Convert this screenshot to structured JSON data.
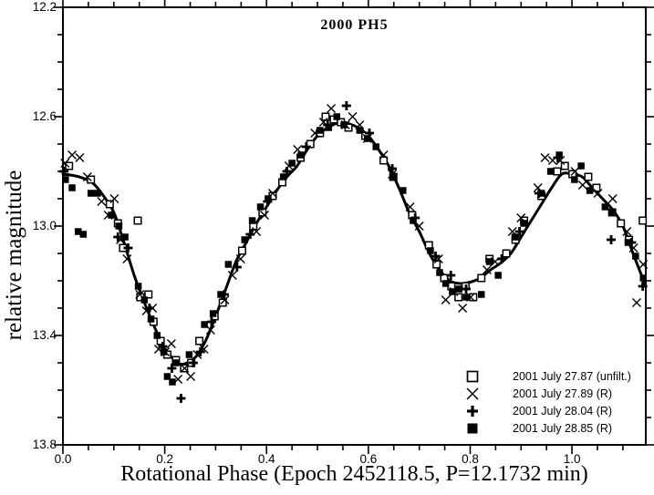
{
  "chart_data": {
    "type": "scatter",
    "title": "2000 PH5",
    "xlabel": "Rotational Phase (Epoch 2452118.5, P=12.1732 min)",
    "ylabel": "relative magnitude",
    "xlim": [
      0.0,
      1.145
    ],
    "ylim": [
      13.8,
      12.2
    ],
    "y_axis_inverted": true,
    "grid": false,
    "legend_position": "inside-lower-right",
    "x_major_ticks": [
      0.0,
      0.2,
      0.4,
      0.6,
      0.8,
      1.0
    ],
    "x_tick_labels": [
      "0.0",
      "0.2",
      "0.4",
      "0.6",
      "0.8",
      "1.0"
    ],
    "x_minor_step": 0.05,
    "y_major_ticks": [
      12.2,
      12.6,
      13.0,
      13.4,
      13.8
    ],
    "y_tick_labels": [
      "12.2",
      "12.6",
      "13.0",
      "13.4",
      "13.8"
    ],
    "y_minor_step": 0.1,
    "colors": {
      "foreground": "#000000",
      "background": "#ffffff"
    },
    "fit_curve": {
      "name": "fourier-fit-curve",
      "points": [
        [
          0.0,
          12.81
        ],
        [
          0.02,
          12.815
        ],
        [
          0.04,
          12.825
        ],
        [
          0.06,
          12.845
        ],
        [
          0.08,
          12.89
        ],
        [
          0.1,
          12.95
        ],
        [
          0.12,
          13.06
        ],
        [
          0.14,
          13.18
        ],
        [
          0.16,
          13.28
        ],
        [
          0.18,
          13.37
        ],
        [
          0.2,
          13.45
        ],
        [
          0.22,
          13.49
        ],
        [
          0.235,
          13.505
        ],
        [
          0.26,
          13.48
        ],
        [
          0.28,
          13.42
        ],
        [
          0.3,
          13.33
        ],
        [
          0.32,
          13.23
        ],
        [
          0.34,
          13.13
        ],
        [
          0.36,
          13.06
        ],
        [
          0.38,
          12.99
        ],
        [
          0.4,
          12.93
        ],
        [
          0.42,
          12.87
        ],
        [
          0.44,
          12.82
        ],
        [
          0.46,
          12.78
        ],
        [
          0.48,
          12.72
        ],
        [
          0.5,
          12.67
        ],
        [
          0.52,
          12.64
        ],
        [
          0.545,
          12.62
        ],
        [
          0.56,
          12.625
        ],
        [
          0.58,
          12.64
        ],
        [
          0.6,
          12.67
        ],
        [
          0.62,
          12.72
        ],
        [
          0.64,
          12.78
        ],
        [
          0.66,
          12.86
        ],
        [
          0.68,
          12.95
        ],
        [
          0.7,
          13.02
        ],
        [
          0.72,
          13.1
        ],
        [
          0.74,
          13.16
        ],
        [
          0.76,
          13.2
        ],
        [
          0.78,
          13.21
        ],
        [
          0.8,
          13.205
        ],
        [
          0.82,
          13.19
        ],
        [
          0.84,
          13.16
        ],
        [
          0.86,
          13.135
        ],
        [
          0.88,
          13.1
        ],
        [
          0.9,
          13.04
        ],
        [
          0.92,
          12.98
        ],
        [
          0.94,
          12.92
        ],
        [
          0.96,
          12.86
        ],
        [
          0.98,
          12.81
        ],
        [
          1.0,
          12.81
        ],
        [
          1.02,
          12.82
        ],
        [
          1.04,
          12.86
        ],
        [
          1.06,
          12.9
        ],
        [
          1.08,
          12.94
        ],
        [
          1.1,
          13.0
        ],
        [
          1.12,
          13.1
        ],
        [
          1.145,
          13.22
        ]
      ]
    },
    "series": [
      {
        "name": "2001 July 27.87 (unfilt.)",
        "marker": "open-square",
        "points": [
          [
            0.012,
            12.78
          ],
          [
            0.055,
            12.83
          ],
          [
            0.092,
            12.92
          ],
          [
            0.108,
            12.99
          ],
          [
            0.118,
            13.08
          ],
          [
            0.147,
            12.98
          ],
          [
            0.152,
            13.26
          ],
          [
            0.168,
            13.25
          ],
          [
            0.178,
            13.35
          ],
          [
            0.192,
            13.42
          ],
          [
            0.205,
            13.47
          ],
          [
            0.222,
            13.49
          ],
          [
            0.238,
            13.52
          ],
          [
            0.252,
            13.5
          ],
          [
            0.268,
            13.42
          ],
          [
            0.298,
            13.33
          ],
          [
            0.314,
            13.28
          ],
          [
            0.352,
            13.09
          ],
          [
            0.374,
            13.0
          ],
          [
            0.392,
            12.95
          ],
          [
            0.412,
            12.89
          ],
          [
            0.431,
            12.84
          ],
          [
            0.467,
            12.75
          ],
          [
            0.486,
            12.7
          ],
          [
            0.505,
            12.66
          ],
          [
            0.516,
            12.6
          ],
          [
            0.532,
            12.61
          ],
          [
            0.546,
            12.62
          ],
          [
            0.561,
            12.64
          ],
          [
            0.594,
            12.67
          ],
          [
            0.63,
            12.76
          ],
          [
            0.649,
            12.82
          ],
          [
            0.686,
            12.96
          ],
          [
            0.719,
            13.07
          ],
          [
            0.734,
            13.14
          ],
          [
            0.749,
            13.19
          ],
          [
            0.763,
            13.22
          ],
          [
            0.777,
            13.26
          ],
          [
            0.791,
            13.22
          ],
          [
            0.806,
            13.26
          ],
          [
            0.822,
            13.19
          ],
          [
            0.838,
            13.12
          ],
          [
            0.871,
            13.1
          ],
          [
            0.889,
            13.05
          ],
          [
            0.906,
            12.98
          ],
          [
            0.94,
            12.89
          ],
          [
            0.971,
            12.8
          ],
          [
            0.986,
            12.78
          ],
          [
            1.001,
            12.81
          ],
          [
            1.032,
            12.82
          ],
          [
            1.048,
            12.86
          ],
          [
            1.079,
            12.95
          ],
          [
            1.096,
            12.99
          ],
          [
            1.112,
            13.05
          ],
          [
            1.139,
            12.98
          ]
        ]
      },
      {
        "name": "2001 July 27.89 (R)",
        "marker": "x-cross",
        "points": [
          [
            0.004,
            12.77
          ],
          [
            0.018,
            12.74
          ],
          [
            0.033,
            12.75
          ],
          [
            0.048,
            12.82
          ],
          [
            0.076,
            12.91
          ],
          [
            0.089,
            12.96
          ],
          [
            0.101,
            12.9
          ],
          [
            0.113,
            13.05
          ],
          [
            0.126,
            13.12
          ],
          [
            0.151,
            13.25
          ],
          [
            0.164,
            13.31
          ],
          [
            0.176,
            13.3
          ],
          [
            0.188,
            13.45
          ],
          [
            0.201,
            13.46
          ],
          [
            0.213,
            13.43
          ],
          [
            0.226,
            13.56
          ],
          [
            0.239,
            13.52
          ],
          [
            0.251,
            13.55
          ],
          [
            0.264,
            13.47
          ],
          [
            0.277,
            13.45
          ],
          [
            0.29,
            13.38
          ],
          [
            0.318,
            13.27
          ],
          [
            0.333,
            13.18
          ],
          [
            0.349,
            13.12
          ],
          [
            0.38,
            13.02
          ],
          [
            0.396,
            12.96
          ],
          [
            0.412,
            12.88
          ],
          [
            0.444,
            12.78
          ],
          [
            0.461,
            12.72
          ],
          [
            0.495,
            12.66
          ],
          [
            0.512,
            12.62
          ],
          [
            0.527,
            12.57
          ],
          [
            0.555,
            12.63
          ],
          [
            0.569,
            12.6
          ],
          [
            0.583,
            12.63
          ],
          [
            0.598,
            12.68
          ],
          [
            0.63,
            12.74
          ],
          [
            0.647,
            12.81
          ],
          [
            0.682,
            12.93
          ],
          [
            0.7,
            13.0
          ],
          [
            0.738,
            13.12
          ],
          [
            0.752,
            13.27
          ],
          [
            0.768,
            13.24
          ],
          [
            0.785,
            13.3
          ],
          [
            0.801,
            13.26
          ],
          [
            0.833,
            13.16
          ],
          [
            0.849,
            13.13
          ],
          [
            0.883,
            13.02
          ],
          [
            0.9,
            12.97
          ],
          [
            0.933,
            12.86
          ],
          [
            0.947,
            12.75
          ],
          [
            0.962,
            12.76
          ],
          [
            0.977,
            12.76
          ],
          [
            1.006,
            12.8
          ],
          [
            1.021,
            12.85
          ],
          [
            1.051,
            12.88
          ],
          [
            1.08,
            12.9
          ],
          [
            1.108,
            13.02
          ],
          [
            1.121,
            13.08
          ],
          [
            1.127,
            13.28
          ],
          [
            1.14,
            13.14
          ]
        ]
      },
      {
        "name": "2001 July 28.04 (R)",
        "marker": "bold-plus",
        "points": [
          [
            0.002,
            12.8
          ],
          [
            0.108,
            13.04
          ],
          [
            0.128,
            13.08
          ],
          [
            0.17,
            13.3
          ],
          [
            0.196,
            13.44
          ],
          [
            0.214,
            13.52
          ],
          [
            0.232,
            13.63
          ],
          [
            0.256,
            13.5
          ],
          [
            0.27,
            13.46
          ],
          [
            0.292,
            13.35
          ],
          [
            0.317,
            13.25
          ],
          [
            0.342,
            13.15
          ],
          [
            0.368,
            13.03
          ],
          [
            0.402,
            12.91
          ],
          [
            0.44,
            12.8
          ],
          [
            0.478,
            12.71
          ],
          [
            0.52,
            12.63
          ],
          [
            0.557,
            12.56
          ],
          [
            0.602,
            12.66
          ],
          [
            0.647,
            12.79
          ],
          [
            0.692,
            12.97
          ],
          [
            0.732,
            13.11
          ],
          [
            0.762,
            13.18
          ],
          [
            0.792,
            13.23
          ],
          [
            0.862,
            13.12
          ],
          [
            0.897,
            13.02
          ],
          [
            0.935,
            12.88
          ],
          [
            0.972,
            12.75
          ],
          [
            1.077,
            13.05
          ],
          [
            1.117,
            13.06
          ],
          [
            1.139,
            13.22
          ]
        ]
      },
      {
        "name": "2001 July 28.85 (R)",
        "marker": "filled-square",
        "points": [
          [
            0.005,
            12.83
          ],
          [
            0.018,
            12.86
          ],
          [
            0.03,
            13.02
          ],
          [
            0.04,
            13.03
          ],
          [
            0.055,
            12.88
          ],
          [
            0.068,
            12.88
          ],
          [
            0.095,
            12.96
          ],
          [
            0.11,
            13.0
          ],
          [
            0.122,
            13.04
          ],
          [
            0.148,
            13.22
          ],
          [
            0.16,
            13.27
          ],
          [
            0.173,
            13.34
          ],
          [
            0.185,
            13.4
          ],
          [
            0.198,
            13.46
          ],
          [
            0.205,
            13.55
          ],
          [
            0.215,
            13.57
          ],
          [
            0.222,
            13.5
          ],
          [
            0.248,
            13.47
          ],
          [
            0.278,
            13.36
          ],
          [
            0.295,
            13.32
          ],
          [
            0.31,
            13.25
          ],
          [
            0.325,
            13.14
          ],
          [
            0.357,
            13.05
          ],
          [
            0.372,
            12.98
          ],
          [
            0.388,
            12.93
          ],
          [
            0.403,
            12.9
          ],
          [
            0.433,
            12.82
          ],
          [
            0.45,
            12.77
          ],
          [
            0.468,
            12.74
          ],
          [
            0.505,
            12.65
          ],
          [
            0.522,
            12.64
          ],
          [
            0.538,
            12.6
          ],
          [
            0.552,
            12.63
          ],
          [
            0.583,
            12.65
          ],
          [
            0.598,
            12.68
          ],
          [
            0.615,
            12.71
          ],
          [
            0.65,
            12.82
          ],
          [
            0.668,
            12.87
          ],
          [
            0.688,
            12.98
          ],
          [
            0.722,
            13.09
          ],
          [
            0.74,
            13.17
          ],
          [
            0.752,
            13.21
          ],
          [
            0.765,
            13.24
          ],
          [
            0.778,
            13.23
          ],
          [
            0.792,
            13.26
          ],
          [
            0.822,
            13.25
          ],
          [
            0.838,
            13.13
          ],
          [
            0.855,
            13.18
          ],
          [
            0.888,
            13.04
          ],
          [
            0.905,
            12.99
          ],
          [
            0.94,
            12.88
          ],
          [
            0.958,
            12.8
          ],
          [
            0.975,
            12.74
          ],
          [
            1.005,
            12.83
          ],
          [
            1.018,
            12.78
          ],
          [
            1.035,
            12.87
          ],
          [
            1.065,
            12.93
          ],
          [
            1.08,
            12.95
          ],
          [
            1.11,
            13.06
          ],
          [
            1.125,
            13.11
          ],
          [
            1.14,
            13.19
          ]
        ]
      }
    ]
  }
}
